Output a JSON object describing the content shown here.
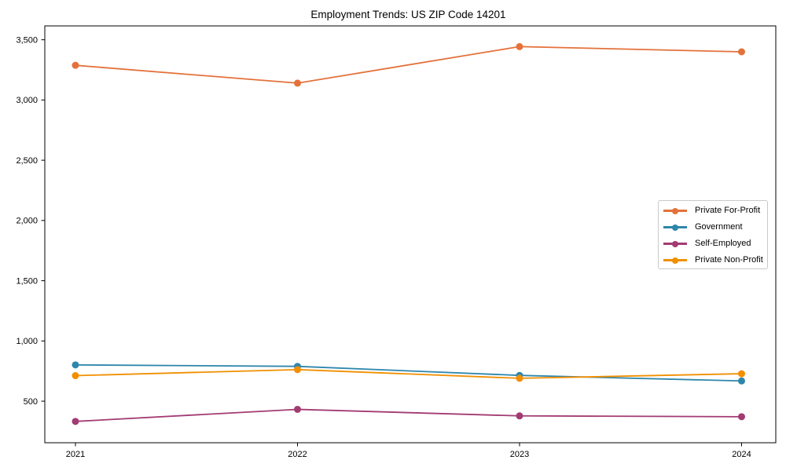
{
  "chart_data": {
    "type": "line",
    "title": "Employment Trends: US ZIP Code 14201",
    "x": [
      2021,
      2022,
      2023,
      2024
    ],
    "series": [
      {
        "name": "Private For-Profit",
        "color": "#E4713B",
        "values": [
          3288,
          3140,
          3443,
          3400
        ]
      },
      {
        "name": "Government",
        "color": "#2E86AB",
        "values": [
          801,
          789,
          714,
          668
        ]
      },
      {
        "name": "Self-Employed",
        "color": "#A23B72",
        "values": [
          332,
          432,
          378,
          371
        ]
      },
      {
        "name": "Private Non-Profit",
        "color": "#F18F01",
        "values": [
          712,
          762,
          690,
          728
        ]
      }
    ],
    "xlabel": "",
    "ylabel": "",
    "xlim": [
      2020.862,
      2024.154
    ],
    "ylim": [
      155,
      3615
    ],
    "xticks": [
      2021,
      2022,
      2023,
      2024
    ],
    "xtick_labels": [
      "2021",
      "2022",
      "2023",
      "2024"
    ],
    "yticks": [
      500,
      1000,
      1500,
      2000,
      2500,
      3000,
      3500
    ],
    "ytick_labels": [
      "500",
      "1,000",
      "1,500",
      "2,000",
      "2,500",
      "3,000",
      "3,500"
    ],
    "grid": false,
    "legend_position": "center-right",
    "marker": "circle",
    "colors": {
      "background": "#ffffff",
      "axis": "#000000",
      "legend_border": "#c9c9c9",
      "text": "#000000"
    }
  }
}
